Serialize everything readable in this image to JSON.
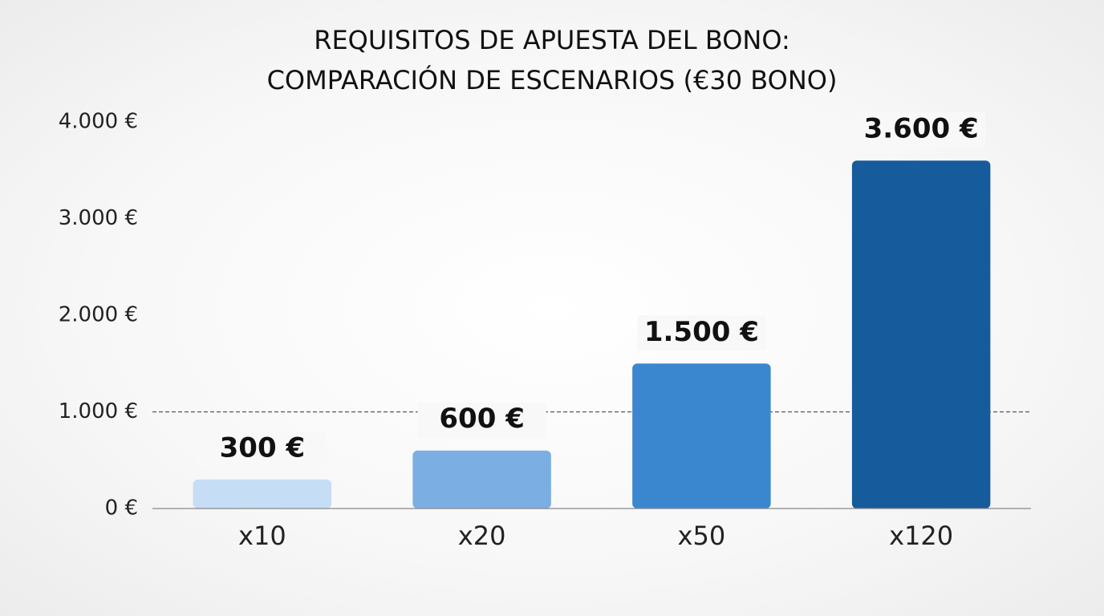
{
  "chart_data": {
    "type": "bar",
    "title": [
      "REQUISITOS DE APUESTA DEL BONO:",
      "COMPARACIÓN DE ESCENARIOS (€30 BONO)"
    ],
    "categories": [
      "x10",
      "x20",
      "x50",
      "x120"
    ],
    "values": [
      300,
      600,
      1500,
      3600
    ],
    "value_labels": [
      "300 €",
      "600 €",
      "1.500 €",
      "3.600 €"
    ],
    "colors": [
      "#c6ddf6",
      "#7bafe3",
      "#3b87cf",
      "#165b9b"
    ],
    "ylim": [
      0,
      4000
    ],
    "yticks": [
      {
        "value": 0,
        "label": "0 €"
      },
      {
        "value": 1000,
        "label": "1.000 €"
      },
      {
        "value": 2000,
        "label": "2.000 €"
      },
      {
        "value": 3000,
        "label": "3.000 €"
      },
      {
        "value": 4000,
        "label": "4.000 €"
      }
    ],
    "reference_line": 1000,
    "grid": false
  }
}
